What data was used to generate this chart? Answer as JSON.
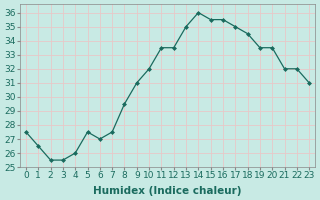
{
  "x": [
    0,
    1,
    2,
    3,
    4,
    5,
    6,
    7,
    8,
    9,
    10,
    11,
    12,
    13,
    14,
    15,
    16,
    17,
    18,
    19,
    20,
    21,
    22,
    23
  ],
  "y": [
    27.5,
    26.5,
    25.5,
    25.5,
    26.0,
    27.5,
    27.0,
    27.5,
    29.5,
    31.0,
    32.0,
    33.5,
    33.5,
    35.0,
    36.0,
    35.5,
    35.5,
    35.0,
    34.5,
    33.5,
    33.5,
    32.0,
    32.0,
    31.0
  ],
  "line_color": "#1a6b5e",
  "marker": "D",
  "marker_size": 2.0,
  "bg_color": "#c8eae4",
  "grid_major_color": "#e8c8c8",
  "grid_minor_color": "#ffffff",
  "xlabel": "Humidex (Indice chaleur)",
  "xlim": [
    -0.5,
    23.5
  ],
  "ylim": [
    25,
    36.6
  ],
  "yticks": [
    25,
    26,
    27,
    28,
    29,
    30,
    31,
    32,
    33,
    34,
    35,
    36
  ],
  "xticks": [
    0,
    1,
    2,
    3,
    4,
    5,
    6,
    7,
    8,
    9,
    10,
    11,
    12,
    13,
    14,
    15,
    16,
    17,
    18,
    19,
    20,
    21,
    22,
    23
  ],
  "font_size": 6.5,
  "xlabel_fontsize": 7.5
}
